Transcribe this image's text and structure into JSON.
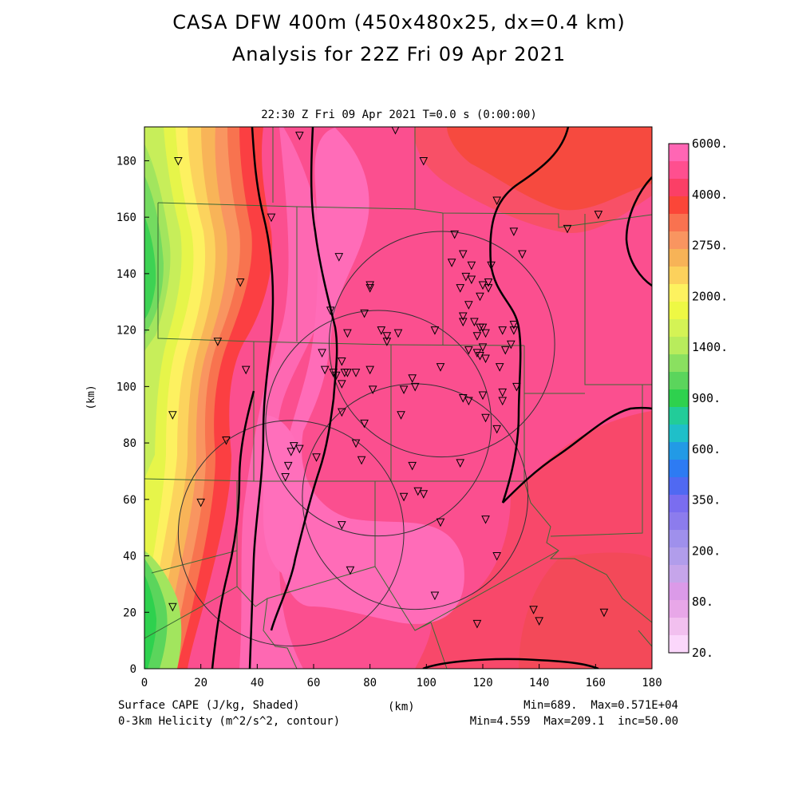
{
  "title_line1": "CASA DFW 400m (450x480x25, dx=0.4 km)",
  "title_line2": "Analysis for 22Z Fri 09 Apr 2021",
  "subtitle": "22:30 Z Fri 09 Apr 2021    T=0.0 s (0:00:00)",
  "axes": {
    "x_ticks": [
      "0",
      "20",
      "40",
      "60",
      "80",
      "100",
      "120",
      "140",
      "160",
      "180"
    ],
    "y_ticks": [
      "0",
      "20",
      "40",
      "60",
      "80",
      "100",
      "120",
      "140",
      "160",
      "180"
    ],
    "x_label": "(km)",
    "y_label": "(km)",
    "x_range": [
      0,
      180
    ],
    "y_range": [
      0,
      192
    ]
  },
  "colorbar": {
    "labels": [
      "6000.",
      "4000.",
      "2750.",
      "2000.",
      "1400.",
      "900.",
      "600.",
      "350.",
      "200.",
      "80.",
      "20."
    ],
    "colors": [
      "#ff66b4",
      "#ff4f8f",
      "#fb3f66",
      "#fb4638",
      "#f97250",
      "#f99560",
      "#f7b357",
      "#fcd15c",
      "#fdf25f",
      "#eef844",
      "#d4f355",
      "#b8ec5c",
      "#8ae060",
      "#5bd55c",
      "#2ed14e",
      "#22cc99",
      "#1fbfc9",
      "#229ae6",
      "#2d7bf3",
      "#5069f2",
      "#7a6df0",
      "#8c7ced",
      "#9f90ec",
      "#b19deb",
      "#c6a5ea",
      "#db9ae8",
      "#e8a7e8",
      "#f2c0ef",
      "#fbd7fb"
    ]
  },
  "footer": {
    "left1": "Surface CAPE (J/kg, Shaded)",
    "left2": "0-3km Helicity (m^2/s^2, contour)",
    "center": "(km)",
    "right1": "Min=689.  Max=0.571E+04",
    "right2": "Min=4.559  Max=209.1  inc=50.00"
  },
  "map": {
    "shaded_field": "surface-cape",
    "contour_field": "0-3km-helicity",
    "radar_circles": [
      {
        "x": 105.5,
        "y": 115
      },
      {
        "x": 83,
        "y": 87
      },
      {
        "x": 96,
        "y": 61
      },
      {
        "x": 52,
        "y": 48
      }
    ],
    "stations": [
      [
        12,
        180
      ],
      [
        55,
        189
      ],
      [
        89,
        191
      ],
      [
        99,
        180
      ],
      [
        125,
        166
      ],
      [
        131,
        155
      ],
      [
        134,
        147
      ],
      [
        150,
        156
      ],
      [
        161,
        161
      ],
      [
        45,
        160
      ],
      [
        69,
        146
      ],
      [
        34,
        137
      ],
      [
        26,
        116
      ],
      [
        36,
        106
      ],
      [
        10,
        90
      ],
      [
        29,
        81
      ],
      [
        20,
        59
      ],
      [
        10,
        22
      ],
      [
        66,
        127
      ],
      [
        78,
        126
      ],
      [
        80,
        136
      ],
      [
        80,
        135
      ],
      [
        72,
        119
      ],
      [
        84,
        120
      ],
      [
        86,
        118
      ],
      [
        86,
        116
      ],
      [
        90,
        119
      ],
      [
        103,
        120
      ],
      [
        110,
        154
      ],
      [
        109,
        144
      ],
      [
        113,
        147
      ],
      [
        116,
        143
      ],
      [
        123,
        143
      ],
      [
        114,
        139
      ],
      [
        116,
        138
      ],
      [
        112,
        135
      ],
      [
        120,
        136
      ],
      [
        122,
        137
      ],
      [
        122,
        135
      ],
      [
        119,
        132
      ],
      [
        115,
        129
      ],
      [
        113,
        125
      ],
      [
        113,
        123
      ],
      [
        117,
        123
      ],
      [
        119,
        121
      ],
      [
        120,
        121
      ],
      [
        118,
        118
      ],
      [
        121,
        119
      ],
      [
        127,
        120
      ],
      [
        131,
        122
      ],
      [
        131,
        120
      ],
      [
        130,
        115
      ],
      [
        128,
        113
      ],
      [
        121,
        110
      ],
      [
        119,
        111
      ],
      [
        118,
        112
      ],
      [
        115,
        113
      ],
      [
        120,
        114
      ],
      [
        126,
        107
      ],
      [
        105,
        107
      ],
      [
        95,
        103
      ],
      [
        96,
        100
      ],
      [
        92,
        99
      ],
      [
        80,
        106
      ],
      [
        63,
        112
      ],
      [
        64,
        106
      ],
      [
        70,
        109
      ],
      [
        71,
        105
      ],
      [
        72,
        105
      ],
      [
        75,
        105
      ],
      [
        67,
        105
      ],
      [
        68,
        104
      ],
      [
        70,
        101
      ],
      [
        81,
        99
      ],
      [
        132,
        100
      ],
      [
        127,
        98
      ],
      [
        127,
        95
      ],
      [
        120,
        97
      ],
      [
        113,
        96
      ],
      [
        115,
        95
      ],
      [
        121,
        89
      ],
      [
        125,
        85
      ],
      [
        91,
        90
      ],
      [
        70,
        91
      ],
      [
        78,
        87
      ],
      [
        53,
        79
      ],
      [
        52,
        77
      ],
      [
        61,
        75
      ],
      [
        77,
        74
      ],
      [
        75,
        80
      ],
      [
        112,
        73
      ],
      [
        95,
        72
      ],
      [
        55,
        78
      ],
      [
        51,
        72
      ],
      [
        50,
        68
      ],
      [
        92,
        61
      ],
      [
        97,
        63
      ],
      [
        99,
        62
      ],
      [
        70,
        51
      ],
      [
        105,
        52
      ],
      [
        121,
        53
      ],
      [
        125,
        40
      ],
      [
        73,
        35
      ],
      [
        103,
        26
      ],
      [
        118,
        16
      ],
      [
        138,
        21
      ],
      [
        140,
        17
      ],
      [
        163,
        20
      ]
    ]
  }
}
